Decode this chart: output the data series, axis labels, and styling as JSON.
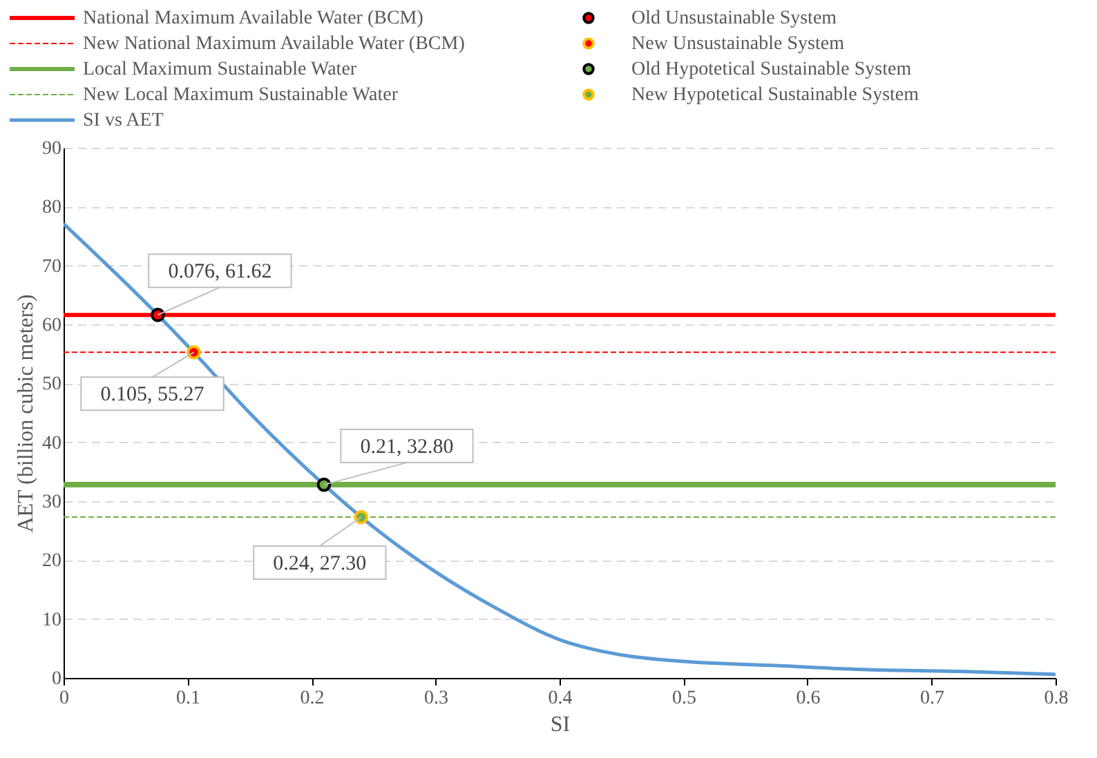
{
  "chart_data": {
    "type": "line",
    "xlabel": "SI",
    "ylabel": "AET (billion cubic meters)",
    "xlim": [
      0,
      0.8
    ],
    "xticks": [
      0,
      0.1,
      0.2,
      0.3,
      0.4,
      0.5,
      0.6,
      0.7,
      0.8
    ],
    "ylim": [
      0,
      90
    ],
    "yticks": [
      0,
      10,
      20,
      30,
      40,
      50,
      60,
      70,
      80,
      90
    ],
    "grid": "y",
    "legend": "top",
    "series": [
      {
        "name": "National Maximum Available Water (BCM)",
        "line_style": "solid",
        "color": "#ff0000",
        "x": [
          0,
          0.8
        ],
        "values": [
          61.62,
          61.62
        ]
      },
      {
        "name": "New National Maximum Available Water (BCM)",
        "line_style": "dashed",
        "color": "#ff0000",
        "x": [
          0,
          0.8
        ],
        "values": [
          55.27,
          55.27
        ]
      },
      {
        "name": "Local Maximum Sustainable Water",
        "line_style": "solid",
        "color": "#70ad47",
        "x": [
          0,
          0.8
        ],
        "values": [
          32.8,
          32.8
        ]
      },
      {
        "name": "New Local Maximum Sustainable Water",
        "line_style": "dashed",
        "color": "#70ad47",
        "x": [
          0,
          0.8
        ],
        "values": [
          27.3,
          27.3
        ]
      },
      {
        "name": "SI vs AET",
        "line_style": "solid",
        "color": "#5b9bd5",
        "x": [
          0,
          0.076,
          0.105,
          0.15,
          0.21,
          0.24,
          0.3,
          0.35,
          0.4,
          0.426,
          0.45,
          0.5,
          0.574,
          0.648,
          0.722,
          0.8
        ],
        "values": [
          77.1,
          61.62,
          55.27,
          45,
          32.8,
          27.3,
          18,
          11.7,
          6.5,
          4.9,
          3.9,
          2.8,
          2.1,
          1.4,
          1.1,
          0.6
        ]
      },
      {
        "name": "Old Unsustainable System",
        "type": "scatter",
        "marker": "circle",
        "color": "#ff0000",
        "x": [
          0.076
        ],
        "values": [
          61.62
        ]
      },
      {
        "name": "New Unsustainable System",
        "type": "scatter",
        "marker": "circle",
        "color": "#ff0000",
        "x": [
          0.105
        ],
        "values": [
          55.27
        ]
      },
      {
        "name": "Old Hypotetical Sustainable System",
        "type": "scatter",
        "marker": "circle",
        "color": "#70ad47",
        "x": [
          0.21
        ],
        "values": [
          32.8
        ]
      },
      {
        "name": "New Hypotetical Sustainable System",
        "type": "scatter",
        "marker": "circle",
        "color": "#70ad47",
        "x": [
          0.24
        ],
        "values": [
          27.3
        ]
      }
    ],
    "annotations": [
      {
        "text": "0.076, 61.62",
        "x": 0.076,
        "y": 61.62
      },
      {
        "text": "0.105, 55.27",
        "x": 0.105,
        "y": 55.27
      },
      {
        "text": "0.21, 32.80",
        "x": 0.21,
        "y": 32.8
      },
      {
        "text": "0.24, 27.30",
        "x": 0.24,
        "y": 27.3
      }
    ]
  }
}
